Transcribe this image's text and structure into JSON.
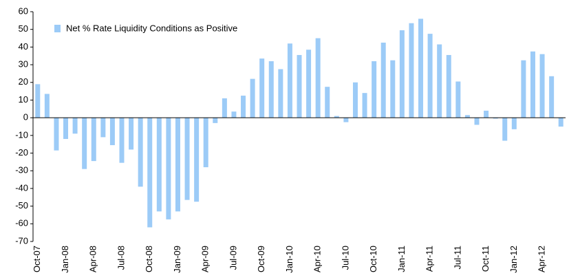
{
  "chart_data": {
    "type": "bar",
    "legend": "Net % Rate Liquidity Conditions as Positive",
    "color": "#9ccbf7",
    "categories": [
      "Oct-07",
      null,
      null,
      "Jan-08",
      null,
      null,
      "Apr-08",
      null,
      null,
      "Jul-08",
      null,
      null,
      "Oct-08",
      null,
      null,
      "Jan-09",
      null,
      null,
      "Apr-09",
      null,
      null,
      "Jul-09",
      null,
      null,
      "Oct-09",
      null,
      null,
      "Jan-10",
      null,
      null,
      "Apr-10",
      null,
      null,
      "Jul-10",
      null,
      null,
      "Oct-10",
      null,
      null,
      "Jan-11",
      null,
      null,
      "Apr-11",
      null,
      null,
      "Jul-11",
      null,
      null,
      "Oct-11",
      null,
      null,
      "Jan-12",
      null,
      null,
      "Apr-12",
      null,
      null
    ],
    "values": [
      19,
      13.5,
      -18.5,
      -12,
      -9,
      -29,
      -24.5,
      -11,
      -15.5,
      -25.5,
      -18,
      -39,
      -62,
      -53,
      -57.5,
      -53,
      -46.5,
      -47.5,
      -28,
      -3,
      11,
      3.5,
      12.5,
      22,
      33.5,
      32,
      27.5,
      42,
      35.5,
      38.5,
      45,
      17.5,
      1,
      -2.5,
      20,
      14,
      32,
      42.5,
      32.5,
      49.5,
      53.5,
      56,
      47.5,
      41.5,
      35.5,
      20.5,
      1.5,
      -4,
      4,
      -0.5,
      -13,
      -6.5,
      32.5,
      37.5,
      36,
      23.5,
      -5
    ],
    "ylim": [
      -70,
      60
    ],
    "yticks": [
      -70,
      -60,
      -50,
      -40,
      -30,
      -20,
      -10,
      0,
      10,
      20,
      30,
      40,
      50,
      60
    ],
    "grid": false
  }
}
